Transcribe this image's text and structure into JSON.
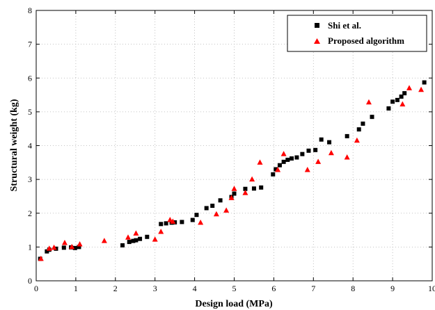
{
  "chart_data": {
    "type": "scatter",
    "xlabel": "Design load (MPa)",
    "ylabel": "Structural weight (kg)",
    "xlim": [
      0,
      10
    ],
    "ylim": [
      0,
      8
    ],
    "xticks": [
      0,
      1,
      2,
      3,
      4,
      5,
      6,
      7,
      8,
      9,
      10
    ],
    "yticks": [
      0,
      1,
      2,
      3,
      4,
      5,
      6,
      7,
      8
    ],
    "grid": true,
    "legend_position": "top-right",
    "series": [
      {
        "name": "Shi et al.",
        "marker": "square",
        "color": "#000000",
        "points": [
          [
            0.1,
            0.65
          ],
          [
            0.27,
            0.87
          ],
          [
            0.33,
            0.92
          ],
          [
            0.5,
            0.95
          ],
          [
            0.7,
            0.98
          ],
          [
            0.88,
            0.99
          ],
          [
            0.98,
            0.97
          ],
          [
            1.08,
            1.0
          ],
          [
            2.18,
            1.05
          ],
          [
            2.35,
            1.15
          ],
          [
            2.45,
            1.18
          ],
          [
            2.52,
            1.2
          ],
          [
            2.62,
            1.24
          ],
          [
            2.8,
            1.3
          ],
          [
            3.15,
            1.68
          ],
          [
            3.28,
            1.7
          ],
          [
            3.42,
            1.72
          ],
          [
            3.5,
            1.73
          ],
          [
            3.68,
            1.74
          ],
          [
            3.95,
            1.8
          ],
          [
            4.05,
            1.95
          ],
          [
            4.3,
            2.15
          ],
          [
            4.45,
            2.22
          ],
          [
            4.65,
            2.38
          ],
          [
            4.93,
            2.48
          ],
          [
            5.0,
            2.58
          ],
          [
            5.28,
            2.72
          ],
          [
            5.5,
            2.73
          ],
          [
            5.68,
            2.76
          ],
          [
            5.98,
            3.15
          ],
          [
            6.05,
            3.3
          ],
          [
            6.15,
            3.42
          ],
          [
            6.25,
            3.52
          ],
          [
            6.35,
            3.58
          ],
          [
            6.45,
            3.62
          ],
          [
            6.58,
            3.65
          ],
          [
            6.72,
            3.75
          ],
          [
            6.88,
            3.85
          ],
          [
            7.05,
            3.87
          ],
          [
            7.2,
            4.18
          ],
          [
            7.4,
            4.1
          ],
          [
            7.85,
            4.28
          ],
          [
            8.15,
            4.48
          ],
          [
            8.25,
            4.65
          ],
          [
            8.48,
            4.85
          ],
          [
            8.9,
            5.1
          ],
          [
            9.0,
            5.3
          ],
          [
            9.12,
            5.35
          ],
          [
            9.22,
            5.45
          ],
          [
            9.3,
            5.55
          ],
          [
            9.8,
            5.87
          ]
        ]
      },
      {
        "name": "Proposed algorithm",
        "marker": "triangle",
        "color": "#ff0000",
        "points": [
          [
            0.12,
            0.65
          ],
          [
            0.33,
            0.95
          ],
          [
            0.45,
            0.98
          ],
          [
            0.72,
            1.12
          ],
          [
            0.9,
            1.0
          ],
          [
            1.1,
            1.08
          ],
          [
            1.72,
            1.18
          ],
          [
            2.32,
            1.28
          ],
          [
            2.52,
            1.4
          ],
          [
            3.0,
            1.22
          ],
          [
            3.15,
            1.45
          ],
          [
            3.38,
            1.8
          ],
          [
            3.45,
            1.75
          ],
          [
            4.15,
            1.72
          ],
          [
            4.55,
            1.97
          ],
          [
            4.8,
            2.08
          ],
          [
            4.93,
            2.45
          ],
          [
            5.0,
            2.72
          ],
          [
            5.28,
            2.6
          ],
          [
            5.45,
            3.0
          ],
          [
            5.65,
            3.5
          ],
          [
            6.1,
            3.28
          ],
          [
            6.25,
            3.75
          ],
          [
            6.85,
            3.28
          ],
          [
            7.12,
            3.52
          ],
          [
            7.45,
            3.78
          ],
          [
            7.85,
            3.65
          ],
          [
            8.1,
            4.15
          ],
          [
            8.4,
            5.28
          ],
          [
            9.25,
            5.22
          ],
          [
            9.42,
            5.7
          ],
          [
            9.72,
            5.65
          ]
        ]
      }
    ]
  }
}
